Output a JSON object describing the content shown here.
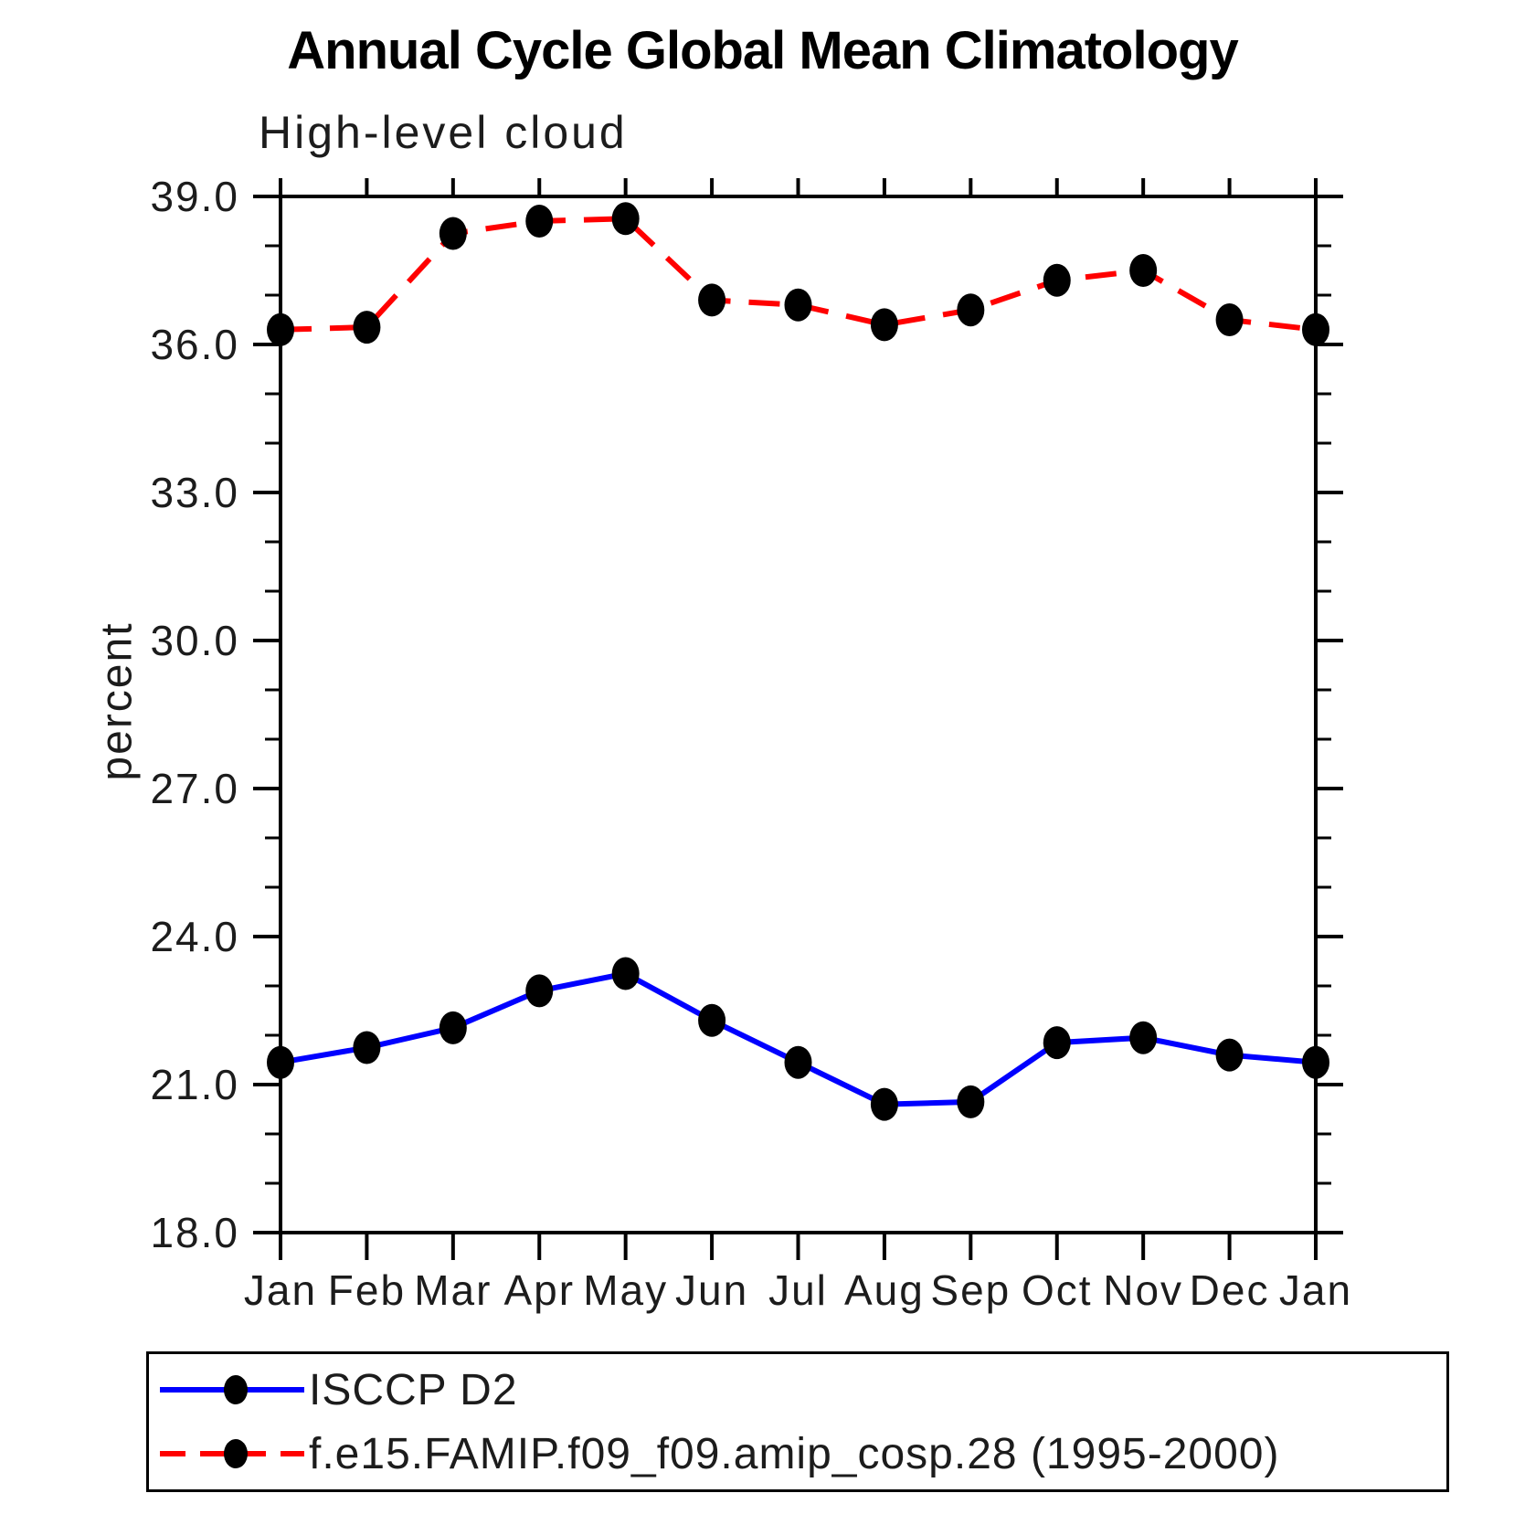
{
  "chart_data": {
    "type": "line",
    "title": "Annual Cycle Global Mean Climatology",
    "subtitle": "High-level cloud",
    "ylabel": "percent",
    "xlabel": "",
    "ylim": [
      18.0,
      39.0
    ],
    "y_major_ticks": [
      "18.0",
      "21.0",
      "24.0",
      "27.0",
      "30.0",
      "33.0",
      "36.0",
      "39.0"
    ],
    "y_minor_interval": 1.0,
    "categories": [
      "Jan",
      "Feb",
      "Mar",
      "Apr",
      "May",
      "Jun",
      "Jul",
      "Aug",
      "Sep",
      "Oct",
      "Nov",
      "Dec",
      "Jan"
    ],
    "grid": false,
    "legend_position": "bottom-left-box",
    "marker": {
      "shape": "filled-circle",
      "color": "#000000"
    },
    "series": [
      {
        "name": "ISCCP D2",
        "color": "#0000ff",
        "line_style": "solid",
        "values": [
          21.45,
          21.75,
          22.15,
          22.9,
          23.25,
          22.3,
          21.45,
          20.6,
          20.65,
          21.85,
          21.95,
          21.6,
          21.45
        ]
      },
      {
        "name": "f.e15.FAMIP.f09_f09.amip_cosp.28 (1995-2000)",
        "color": "#ff0000",
        "line_style": "dashed",
        "values": [
          36.3,
          36.35,
          38.25,
          38.5,
          38.55,
          36.9,
          36.8,
          36.4,
          36.7,
          37.3,
          37.5,
          36.5,
          36.3
        ]
      }
    ]
  }
}
